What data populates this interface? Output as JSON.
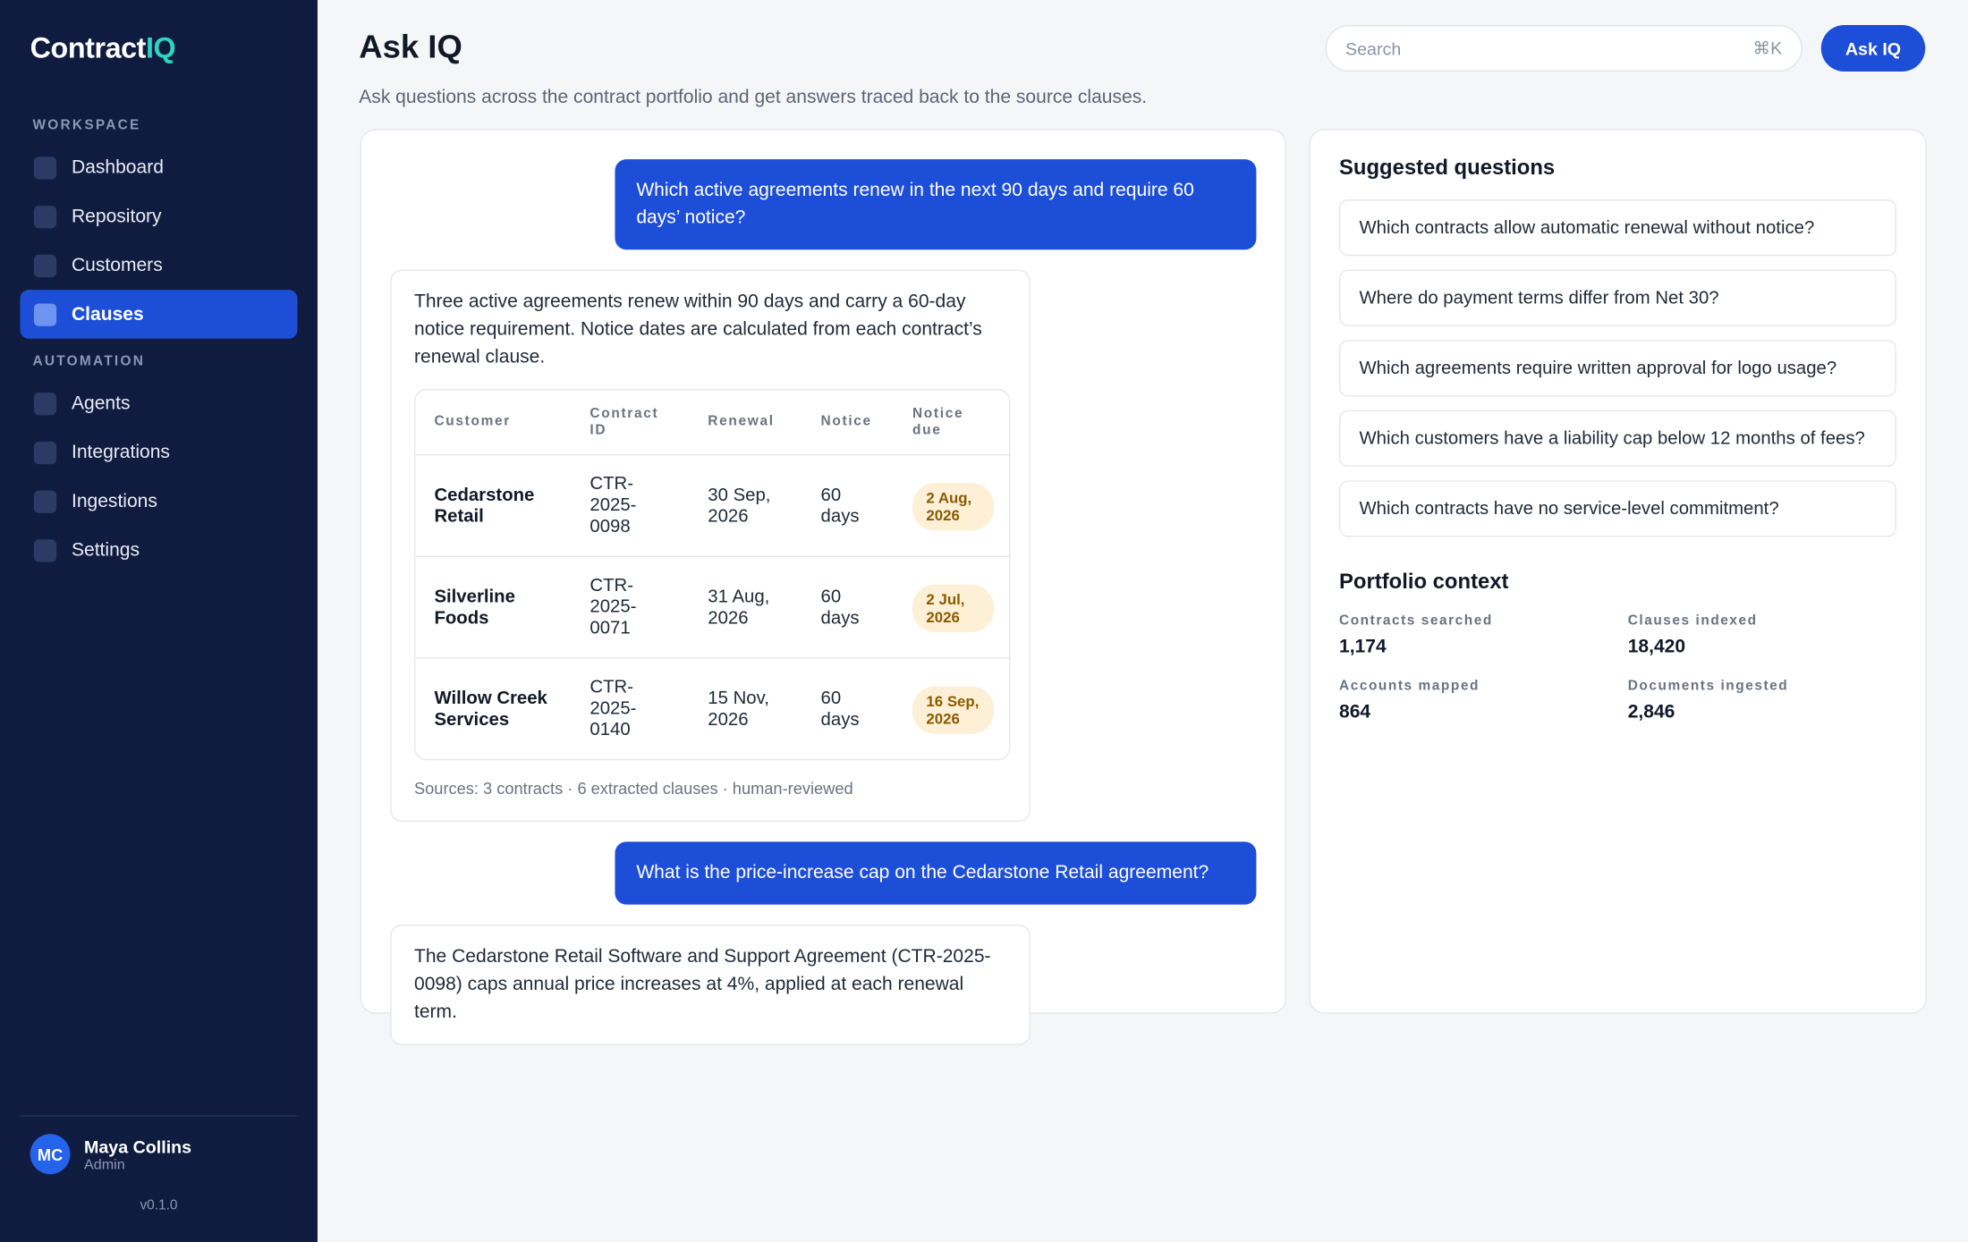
{
  "sidebar": {
    "brand": {
      "prefix": "Contract",
      "suffix": "IQ"
    },
    "sections": [
      {
        "label": "WORKSPACE",
        "items": [
          "Dashboard",
          "Repository",
          "Customers",
          "Clauses"
        ]
      },
      {
        "label": "AUTOMATION",
        "items": [
          "Agents",
          "Integrations",
          "Ingestions",
          "Settings"
        ]
      }
    ],
    "active_item": "Clauses",
    "user": {
      "initials": "MC",
      "name": "Maya Collins",
      "role": "Admin"
    },
    "version": "v0.1.0"
  },
  "header": {
    "title": "Ask IQ",
    "subtitle": "Ask questions across the contract portfolio and get answers traced back to the source clauses.",
    "search_placeholder": "Search",
    "search_shortcut": "⌘K",
    "button": "Ask IQ"
  },
  "chat": {
    "messages": [
      {
        "role": "user",
        "text": "Which active agreements renew in the next 90 days and require 60 days’ notice?"
      },
      {
        "role": "assistant",
        "text": "Three active agreements renew within 90 days and carry a 60-day notice requirement. Notice dates are calculated from each contract’s renewal clause.",
        "table": {
          "columns": [
            "Customer",
            "Contract ID",
            "Renewal",
            "Notice",
            "Notice due"
          ],
          "rows": [
            [
              "Cedarstone Retail",
              "CTR-2025-0098",
              "30 Sep, 2026",
              "60 days",
              "2 Aug, 2026"
            ],
            [
              "Silverline Foods",
              "CTR-2025-0071",
              "31 Aug, 2026",
              "60 days",
              "2 Jul, 2026"
            ],
            [
              "Willow Creek Services",
              "CTR-2025-0140",
              "15 Nov, 2026",
              "60 days",
              "16 Sep, 2026"
            ]
          ]
        },
        "sources": "Sources: 3 contracts · 6 extracted clauses · human-reviewed"
      },
      {
        "role": "user",
        "text": "What is the price-increase cap on the Cedarstone Retail agreement?"
      },
      {
        "role": "assistant",
        "text": "The Cedarstone Retail Software and Support Agreement (CTR-2025-0098) caps annual price increases at 4%, applied at each renewal term."
      }
    ]
  },
  "suggested": {
    "title": "Suggested questions",
    "questions": [
      "Which contracts allow automatic renewal without notice?",
      "Where do payment terms differ from Net 30?",
      "Which agreements require written approval for logo usage?",
      "Which customers have a liability cap below 12 months of fees?",
      "Which contracts have no service-level commitment?"
    ]
  },
  "portfolio": {
    "title": "Portfolio context",
    "stats": [
      {
        "label": "Contracts searched",
        "value": "1,174"
      },
      {
        "label": "Clauses indexed",
        "value": "18,420"
      },
      {
        "label": "Accounts mapped",
        "value": "864"
      },
      {
        "label": "Documents ingested",
        "value": "2,846"
      }
    ]
  }
}
